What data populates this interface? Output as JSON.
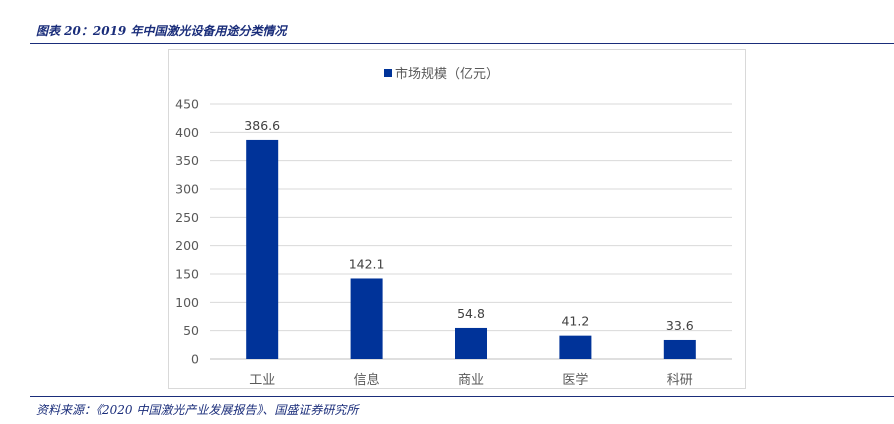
{
  "caption": "图表 20：2019 年中国激光设备用途分类情况",
  "source": "资料来源：《2020 中国激光产业发展报告》、国盛证券研究所",
  "colors": {
    "bar": "#003399",
    "caption": "#1a2d7a",
    "grid": "#d9d9d9"
  },
  "chart_data": {
    "type": "bar",
    "categories": [
      "工业",
      "信息",
      "商业",
      "医学",
      "科研"
    ],
    "series": [
      {
        "name": "市场规模（亿元）",
        "values": [
          386.6,
          142.1,
          54.8,
          41.2,
          33.6
        ]
      }
    ],
    "data_labels": [
      "386.6",
      "142.1",
      "54.8",
      "41.2",
      "33.6"
    ],
    "ylim": [
      0,
      450
    ],
    "yticks": [
      0,
      50,
      100,
      150,
      200,
      250,
      300,
      350,
      400,
      450
    ],
    "grid": true,
    "legend": "top-center"
  }
}
